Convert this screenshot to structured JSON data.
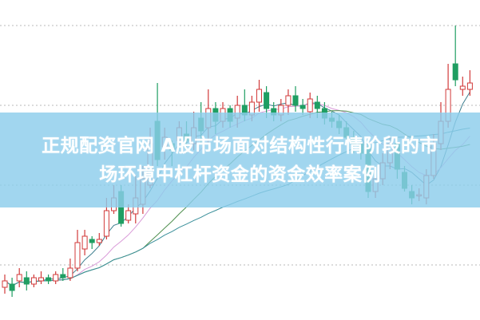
{
  "headline": {
    "line1": "正规配资官网  A股市场面对结构性行情阶段的市",
    "line2": "场环境中杠杆资金的资金效率案例"
  },
  "colors": {
    "up": "#d23a3a",
    "down": "#1f9e62",
    "banner": "#8ccdec",
    "ma": [
      "#3f7f8f",
      "#d99ad8",
      "#4f8f4f",
      "#3a8f9a"
    ]
  },
  "chart_data": {
    "type": "candlestick",
    "title": "",
    "xlabel": "",
    "ylabel": "",
    "grid": true,
    "candles": [
      [
        10,
        12,
        14,
        8
      ],
      [
        11,
        9,
        13,
        7
      ],
      [
        12,
        14,
        16,
        10
      ],
      [
        13,
        11,
        15,
        9
      ],
      [
        11,
        13,
        14,
        10
      ],
      [
        12,
        13,
        15,
        11
      ],
      [
        13,
        12,
        14,
        11
      ],
      [
        12,
        14,
        15,
        11
      ],
      [
        14,
        13,
        16,
        12
      ],
      [
        13,
        16,
        19,
        12
      ],
      [
        16,
        24,
        28,
        15
      ],
      [
        22,
        26,
        28,
        20
      ],
      [
        25,
        24,
        26,
        22
      ],
      [
        24,
        25,
        27,
        23
      ],
      [
        26,
        34,
        38,
        25
      ],
      [
        34,
        38,
        42,
        33
      ],
      [
        40,
        30,
        42,
        29
      ],
      [
        31,
        34,
        36,
        30
      ],
      [
        33,
        38,
        45,
        30
      ],
      [
        36,
        44,
        48,
        33
      ],
      [
        42,
        55,
        60,
        41
      ],
      [
        62,
        50,
        74,
        48
      ],
      [
        54,
        57,
        60,
        50
      ],
      [
        55,
        53,
        56,
        48
      ],
      [
        56,
        60,
        62,
        54
      ],
      [
        58,
        56,
        62,
        52
      ],
      [
        55,
        60,
        65,
        53
      ],
      [
        63,
        59,
        68,
        55
      ],
      [
        60,
        66,
        72,
        55
      ],
      [
        66,
        62,
        68,
        58
      ],
      [
        62,
        66,
        68,
        60
      ],
      [
        66,
        62,
        67,
        60
      ],
      [
        63,
        67,
        70,
        60
      ],
      [
        67,
        64,
        72,
        62
      ],
      [
        64,
        68,
        70,
        62
      ],
      [
        68,
        72,
        75,
        65
      ],
      [
        71,
        66,
        73,
        63
      ],
      [
        66,
        64,
        68,
        62
      ],
      [
        64,
        67,
        69,
        62
      ],
      [
        67,
        70,
        72,
        64
      ],
      [
        70,
        67,
        73,
        65
      ],
      [
        67,
        66,
        69,
        64
      ],
      [
        65,
        69,
        71,
        63
      ],
      [
        68,
        66,
        70,
        63
      ],
      [
        66,
        63,
        68,
        61
      ],
      [
        63,
        62,
        65,
        60
      ],
      [
        62,
        60,
        64,
        58
      ],
      [
        60,
        57,
        62,
        55
      ],
      [
        57,
        55,
        59,
        52
      ],
      [
        55,
        52,
        57,
        50
      ],
      [
        54,
        40,
        56,
        38
      ],
      [
        40,
        44,
        47,
        38
      ],
      [
        44,
        49,
        52,
        42
      ],
      [
        49,
        55,
        57,
        47
      ],
      [
        55,
        47,
        57,
        44
      ],
      [
        46,
        41,
        48,
        40
      ],
      [
        40,
        38,
        42,
        36
      ],
      [
        39,
        39,
        41,
        37
      ],
      [
        38,
        45,
        47,
        36
      ],
      [
        45,
        55,
        58,
        44
      ],
      [
        55,
        62,
        68,
        53
      ],
      [
        62,
        72,
        80,
        60
      ],
      [
        80,
        75,
        92,
        73
      ],
      [
        72,
        73,
        76,
        70
      ],
      [
        72,
        74,
        78,
        70
      ]
    ],
    "candle_fields": [
      "open",
      "close",
      "high",
      "low"
    ],
    "moving_averages": [
      5,
      10,
      20,
      40
    ],
    "grid_levels": [
      17,
      42,
      67,
      92
    ]
  }
}
